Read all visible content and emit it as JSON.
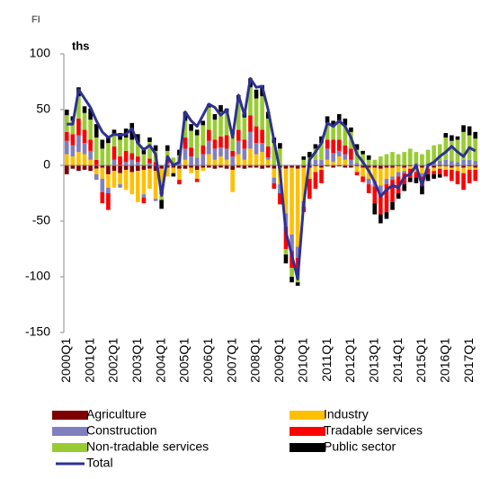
{
  "chart_data": {
    "type": "bar",
    "stacked": true,
    "title": "FI",
    "y_label": "ths",
    "categories": [
      "2000Q1",
      null,
      null,
      null,
      "2001Q1",
      null,
      null,
      null,
      "2002Q1",
      null,
      null,
      null,
      "2003Q1",
      null,
      null,
      null,
      "2004Q1",
      null,
      null,
      null,
      "2005Q1",
      null,
      null,
      null,
      "2006Q1",
      null,
      null,
      null,
      "2007Q1",
      null,
      null,
      null,
      "2008Q1",
      null,
      null,
      null,
      "2009Q1",
      null,
      null,
      null,
      "2010Q1",
      null,
      null,
      null,
      "2011Q1",
      null,
      null,
      null,
      "2012Q1",
      null,
      null,
      null,
      "2013Q1",
      null,
      null,
      null,
      "2014Q1",
      null,
      null,
      null,
      "2015Q1",
      null,
      null,
      null,
      "2016Q1",
      null,
      null,
      null,
      "2017Q1",
      null
    ],
    "ylim": [
      -150,
      100
    ],
    "yticks": [
      -150,
      -100,
      -50,
      0,
      50,
      100
    ],
    "grid": false,
    "series": [
      {
        "name": "Agriculture",
        "color": "#7f0000",
        "values": [
          -8,
          -3,
          -5,
          -4,
          -5,
          -3,
          -2,
          -8,
          -5,
          -7,
          -4,
          -6,
          -5,
          -4,
          -3,
          -5,
          -3,
          -2,
          -2,
          -3,
          -3,
          -2,
          -4,
          -2,
          -2,
          -3,
          -2,
          -3,
          -4,
          -2,
          -3,
          -2,
          -2,
          -3,
          -2,
          -3,
          -2,
          -3,
          -2,
          -3,
          -2,
          -2,
          -1,
          -2,
          -1,
          -2,
          -1,
          -2,
          -2,
          -1,
          -2,
          -2,
          -2,
          -3,
          -2,
          -2,
          -1,
          -2,
          -1,
          -2,
          -2,
          -1,
          -2,
          -1,
          -1,
          -2,
          -1,
          -2,
          -1,
          -2
        ]
      },
      {
        "name": "Industry",
        "color": "#ffc000",
        "values": [
          10,
          8,
          12,
          10,
          5,
          -5,
          -10,
          -12,
          -15,
          -10,
          -18,
          -20,
          -28,
          -22,
          -18,
          -25,
          -15,
          -8,
          -5,
          -10,
          5,
          -5,
          -8,
          -3,
          10,
          5,
          8,
          5,
          -20,
          10,
          5,
          15,
          10,
          12,
          5,
          -8,
          -15,
          -40,
          -60,
          -70,
          -30,
          -10,
          -5,
          -2,
          5,
          3,
          8,
          5,
          0,
          -5,
          -8,
          -10,
          -12,
          -15,
          -10,
          -8,
          -5,
          -3,
          -2,
          -4,
          -5,
          -2,
          -3,
          -2,
          -3,
          -2,
          -4,
          -5,
          -3,
          -2
        ]
      },
      {
        "name": "Construction",
        "color": "#8080c0",
        "values": [
          12,
          10,
          15,
          10,
          8,
          -5,
          -12,
          -5,
          5,
          -3,
          3,
          5,
          3,
          -3,
          2,
          -2,
          -3,
          2,
          0,
          3,
          10,
          8,
          7,
          10,
          12,
          10,
          8,
          10,
          8,
          12,
          10,
          15,
          10,
          8,
          2,
          -5,
          -8,
          -12,
          -15,
          -10,
          -5,
          2,
          5,
          5,
          10,
          8,
          5,
          5,
          5,
          2,
          0,
          -5,
          -5,
          -8,
          -5,
          -3,
          -4,
          -2,
          0,
          2,
          -3,
          2,
          3,
          4,
          5,
          4,
          3,
          5,
          5,
          4
        ]
      },
      {
        "name": "Tradable services",
        "color": "#ff0000",
        "values": [
          8,
          10,
          15,
          12,
          10,
          5,
          -10,
          -15,
          12,
          8,
          10,
          6,
          5,
          -5,
          4,
          3,
          -5,
          3,
          2,
          -4,
          10,
          8,
          -3,
          8,
          10,
          8,
          10,
          12,
          5,
          10,
          8,
          15,
          15,
          12,
          10,
          -5,
          -10,
          -20,
          -15,
          -12,
          -5,
          -18,
          -15,
          -12,
          8,
          12,
          10,
          8,
          10,
          -3,
          -5,
          -8,
          -15,
          -18,
          -25,
          -20,
          -15,
          -10,
          -8,
          -5,
          -8,
          -5,
          -3,
          -5,
          -6,
          -10,
          -12,
          -15,
          -12,
          -10
        ]
      },
      {
        "name": "Non-tradable services",
        "color": "#99cc33",
        "values": [
          15,
          12,
          20,
          15,
          18,
          20,
          15,
          20,
          10,
          15,
          12,
          12,
          12,
          10,
          15,
          10,
          -5,
          8,
          5,
          6,
          15,
          15,
          20,
          18,
          20,
          18,
          22,
          20,
          15,
          25,
          20,
          25,
          25,
          30,
          25,
          20,
          15,
          -5,
          -8,
          -10,
          5,
          5,
          10,
          15,
          15,
          12,
          15,
          18,
          15,
          12,
          10,
          5,
          5,
          8,
          10,
          12,
          10,
          12,
          15,
          10,
          10,
          12,
          15,
          15,
          20,
          18,
          20,
          25,
          22,
          20
        ]
      },
      {
        "name": "Public sector",
        "color": "#000000",
        "values": [
          5,
          4,
          8,
          6,
          10,
          12,
          8,
          6,
          5,
          6,
          8,
          15,
          8,
          6,
          4,
          5,
          -8,
          5,
          -3,
          5,
          8,
          6,
          5,
          4,
          3,
          5,
          6,
          4,
          4,
          6,
          5,
          8,
          8,
          10,
          6,
          5,
          5,
          -8,
          -5,
          -3,
          3,
          5,
          4,
          6,
          6,
          5,
          8,
          6,
          4,
          5,
          3,
          4,
          -10,
          -8,
          -6,
          -7,
          -5,
          -6,
          -4,
          -5,
          -8,
          -6,
          -4,
          -3,
          4,
          5,
          3,
          6,
          8,
          6
        ]
      },
      {
        "name": "Total",
        "type": "line",
        "color": "#2e3192",
        "values": [
          37,
          37,
          68,
          60,
          52,
          40,
          30,
          25,
          28,
          27,
          28,
          33,
          20,
          14,
          18,
          10,
          -27,
          8,
          0,
          3,
          48,
          40,
          35,
          45,
          55,
          52,
          45,
          50,
          25,
          63,
          45,
          78,
          70,
          71,
          50,
          22,
          -5,
          -60,
          -80,
          -102,
          -35,
          5,
          12,
          20,
          38,
          35,
          40,
          35,
          25,
          10,
          3,
          -5,
          -15,
          -28,
          -22,
          -18,
          -20,
          -10,
          -8,
          0,
          -18,
          0,
          3,
          8,
          12,
          17,
          12,
          8,
          16,
          13
        ]
      }
    ]
  }
}
